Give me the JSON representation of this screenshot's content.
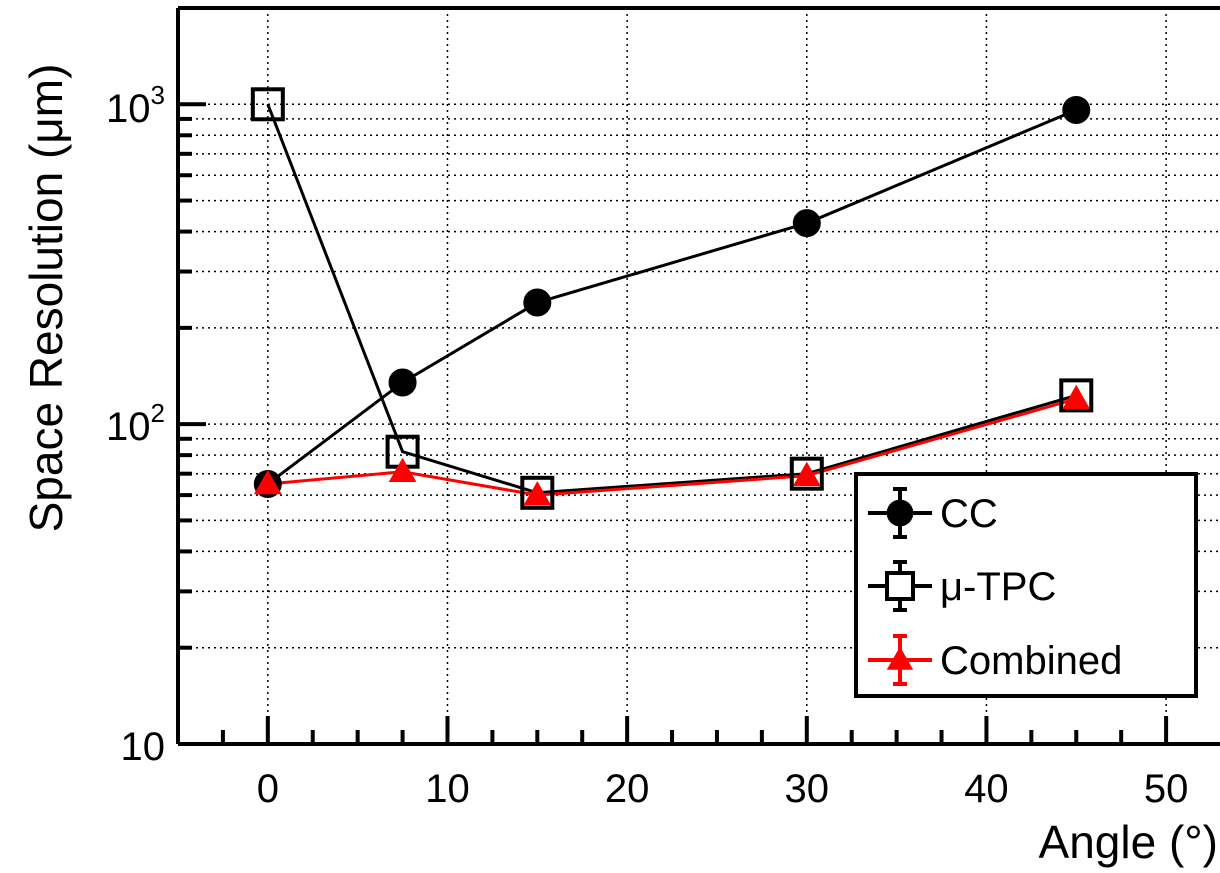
{
  "chart_data": {
    "type": "line",
    "xlabel": "Angle (°)",
    "ylabel": "Space Resolution (μm)",
    "xlim": [
      -5,
      53
    ],
    "ylim": [
      10,
      2000
    ],
    "yscale": "log",
    "grid": true,
    "legend_position": "bottom-right",
    "x_ticks": [
      0,
      10,
      20,
      30,
      40,
      50
    ],
    "x_tick_labels": [
      "0",
      "10",
      "20",
      "30",
      "40",
      "50"
    ],
    "y_tick_labels": {
      "ten": "10",
      "hundred_base": "10",
      "hundred_exp": "2",
      "thousand_base": "10",
      "thousand_exp": "3"
    },
    "series": [
      {
        "name": "CC",
        "color": "#000000",
        "marker": "filled-circle",
        "x": [
          0,
          7.5,
          15,
          30,
          45
        ],
        "y": [
          65,
          135,
          240,
          425,
          960
        ]
      },
      {
        "name": "μ-TPC",
        "color": "#000000",
        "marker": "open-square",
        "x": [
          0,
          7.5,
          15,
          30,
          45
        ],
        "y": [
          1000,
          82,
          61,
          70,
          123
        ]
      },
      {
        "name": "Combined",
        "color": "#ff0000",
        "marker": "filled-triangle",
        "x": [
          0,
          7.5,
          15,
          30,
          45
        ],
        "y": [
          65,
          71,
          60,
          69,
          120
        ]
      }
    ]
  }
}
